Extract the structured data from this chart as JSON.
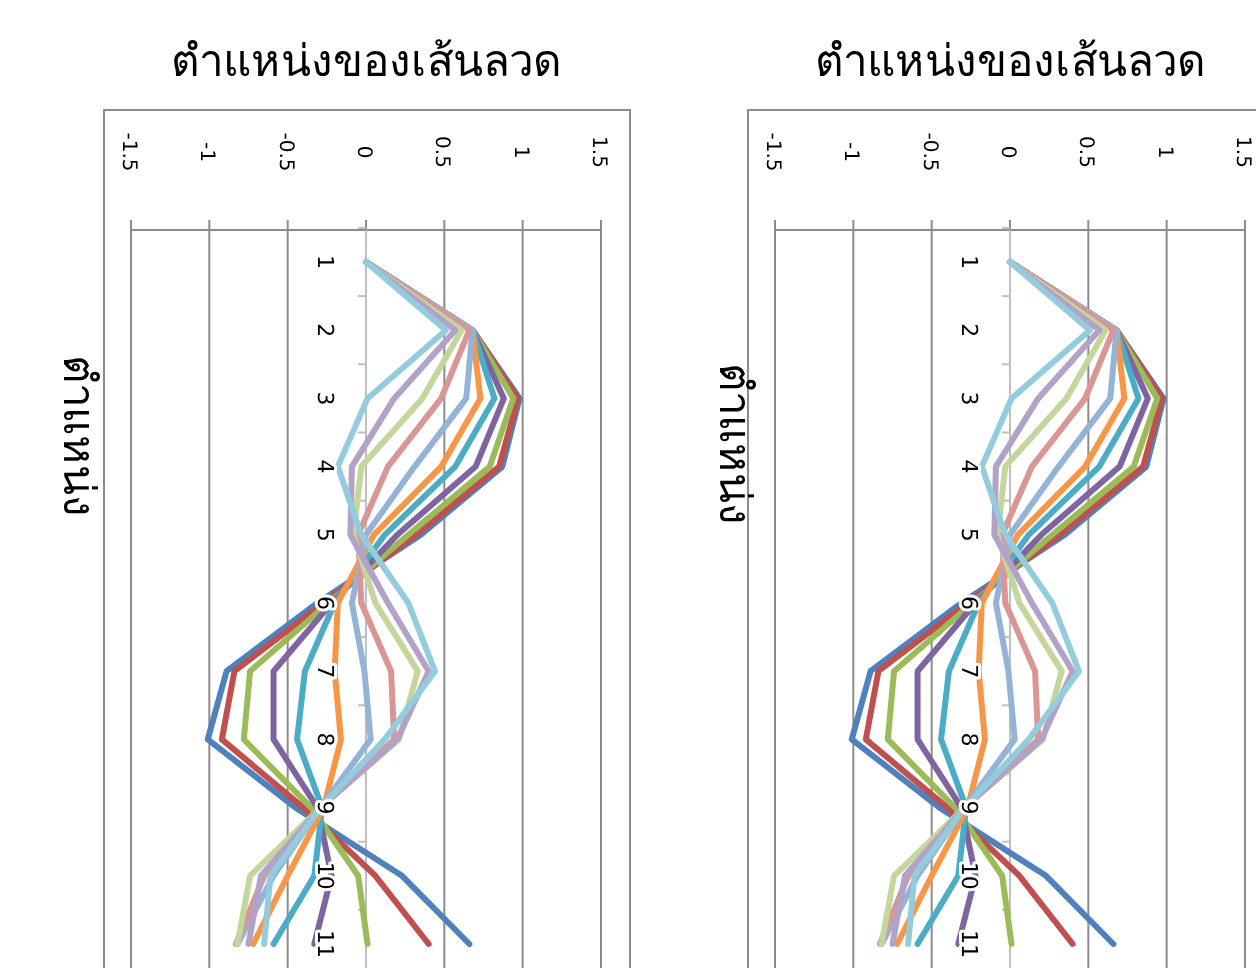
{
  "chart_data": [
    {
      "type": "line",
      "title": "ตำแหน่งของเส้นลวด",
      "ylabel": "ตำแหน่ง",
      "orientation": "horizontal",
      "categories": [
        "1",
        "2",
        "3",
        "4",
        "5",
        "6",
        "7",
        "8",
        "9",
        "10",
        "11"
      ],
      "xlim": [
        -1.5,
        1.5
      ],
      "xticks": [
        -1.5,
        -1,
        -0.5,
        0,
        0.5,
        1,
        1.5
      ],
      "grid": "x",
      "line_style": "solid",
      "series": [
        {
          "color": "#4f81bd",
          "values": [
            0,
            0.68,
            0.98,
            0.87,
            0.35,
            -0.31,
            -0.89,
            -1.01,
            -0.45,
            0.23,
            0.66
          ]
        },
        {
          "color": "#c0504d",
          "values": [
            0,
            0.68,
            0.97,
            0.85,
            0.32,
            -0.27,
            -0.84,
            -0.92,
            -0.4,
            0.06,
            0.4
          ]
        },
        {
          "color": "#9bbb59",
          "values": [
            0,
            0.68,
            0.94,
            0.79,
            0.27,
            -0.24,
            -0.74,
            -0.78,
            -0.35,
            -0.05,
            0.01
          ]
        },
        {
          "color": "#8064a2",
          "values": [
            0,
            0.68,
            0.88,
            0.7,
            0.2,
            -0.22,
            -0.59,
            -0.59,
            -0.31,
            -0.22,
            -0.33
          ]
        },
        {
          "color": "#4bacc6",
          "values": [
            0,
            0.68,
            0.82,
            0.57,
            0.12,
            -0.2,
            -0.39,
            -0.44,
            -0.28,
            -0.33,
            -0.59
          ]
        },
        {
          "color": "#f79646",
          "values": [
            0,
            0.68,
            0.73,
            0.48,
            0.05,
            -0.18,
            -0.2,
            -0.16,
            -0.27,
            -0.5,
            -0.72
          ]
        },
        {
          "color": "#95b3d7",
          "values": [
            0,
            0.68,
            0.64,
            0.31,
            0,
            -0.09,
            -0.01,
            0.03,
            -0.29,
            -0.59,
            -0.82
          ]
        },
        {
          "color": "#d99694",
          "values": [
            0,
            0.66,
            0.48,
            0.14,
            -0.05,
            -0.03,
            0.16,
            0.18,
            -0.29,
            -0.65,
            -0.83
          ]
        },
        {
          "color": "#c3d69b",
          "values": [
            0,
            0.61,
            0.36,
            -0.03,
            -0.08,
            0.06,
            0.33,
            0.21,
            -0.29,
            -0.74,
            -0.82
          ]
        },
        {
          "color": "#b3a2c7",
          "values": [
            0,
            0.57,
            0.18,
            -0.09,
            -0.1,
            0.14,
            0.4,
            0.2,
            -0.29,
            -0.67,
            -0.75
          ]
        },
        {
          "color": "#93cddd",
          "values": [
            0,
            0.51,
            0.01,
            -0.18,
            -0.03,
            0.27,
            0.44,
            0.12,
            -0.29,
            -0.61,
            -0.65
          ]
        }
      ]
    },
    {
      "type": "line",
      "title": "ตำแหน่งของเส้นลวด",
      "ylabel": "ตำแหน่ง",
      "orientation": "horizontal",
      "categories": [
        "1",
        "2",
        "3",
        "4",
        "5",
        "6",
        "7",
        "8",
        "9",
        "10",
        "11"
      ],
      "xlim": [
        -1.5,
        1.5
      ],
      "xticks": [
        -1.5,
        -1,
        -0.5,
        0,
        0.5,
        1,
        1.5
      ],
      "grid": "x",
      "line_style": "solid",
      "series": [
        {
          "color": "#4f81bd",
          "values": [
            0,
            0.68,
            0.98,
            0.87,
            0.35,
            -0.31,
            -0.89,
            -1.01,
            -0.45,
            0.23,
            0.66
          ]
        },
        {
          "color": "#c0504d",
          "values": [
            0,
            0.68,
            0.97,
            0.85,
            0.32,
            -0.27,
            -0.84,
            -0.92,
            -0.4,
            0.06,
            0.4
          ]
        },
        {
          "color": "#9bbb59",
          "values": [
            0,
            0.68,
            0.94,
            0.79,
            0.27,
            -0.24,
            -0.74,
            -0.78,
            -0.35,
            -0.05,
            0.01
          ]
        },
        {
          "color": "#8064a2",
          "values": [
            0,
            0.68,
            0.88,
            0.7,
            0.2,
            -0.22,
            -0.59,
            -0.59,
            -0.31,
            -0.22,
            -0.33
          ]
        },
        {
          "color": "#4bacc6",
          "values": [
            0,
            0.68,
            0.82,
            0.57,
            0.12,
            -0.2,
            -0.39,
            -0.44,
            -0.28,
            -0.33,
            -0.59
          ]
        },
        {
          "color": "#f79646",
          "values": [
            0,
            0.68,
            0.73,
            0.48,
            0.05,
            -0.18,
            -0.2,
            -0.16,
            -0.27,
            -0.5,
            -0.72
          ]
        },
        {
          "color": "#95b3d7",
          "values": [
            0,
            0.68,
            0.64,
            0.31,
            0,
            -0.09,
            -0.01,
            0.03,
            -0.29,
            -0.59,
            -0.82
          ]
        },
        {
          "color": "#d99694",
          "values": [
            0,
            0.66,
            0.48,
            0.14,
            -0.05,
            -0.03,
            0.16,
            0.18,
            -0.29,
            -0.65,
            -0.83
          ]
        },
        {
          "color": "#c3d69b",
          "values": [
            0,
            0.61,
            0.36,
            -0.03,
            -0.08,
            0.06,
            0.33,
            0.21,
            -0.29,
            -0.74,
            -0.82
          ]
        },
        {
          "color": "#b3a2c7",
          "values": [
            0,
            0.57,
            0.18,
            -0.09,
            -0.1,
            0.14,
            0.4,
            0.2,
            -0.29,
            -0.67,
            -0.75
          ]
        },
        {
          "color": "#93cddd",
          "values": [
            0,
            0.51,
            0.01,
            -0.18,
            -0.03,
            0.27,
            0.44,
            0.12,
            -0.29,
            -0.61,
            -0.65
          ]
        }
      ]
    }
  ]
}
